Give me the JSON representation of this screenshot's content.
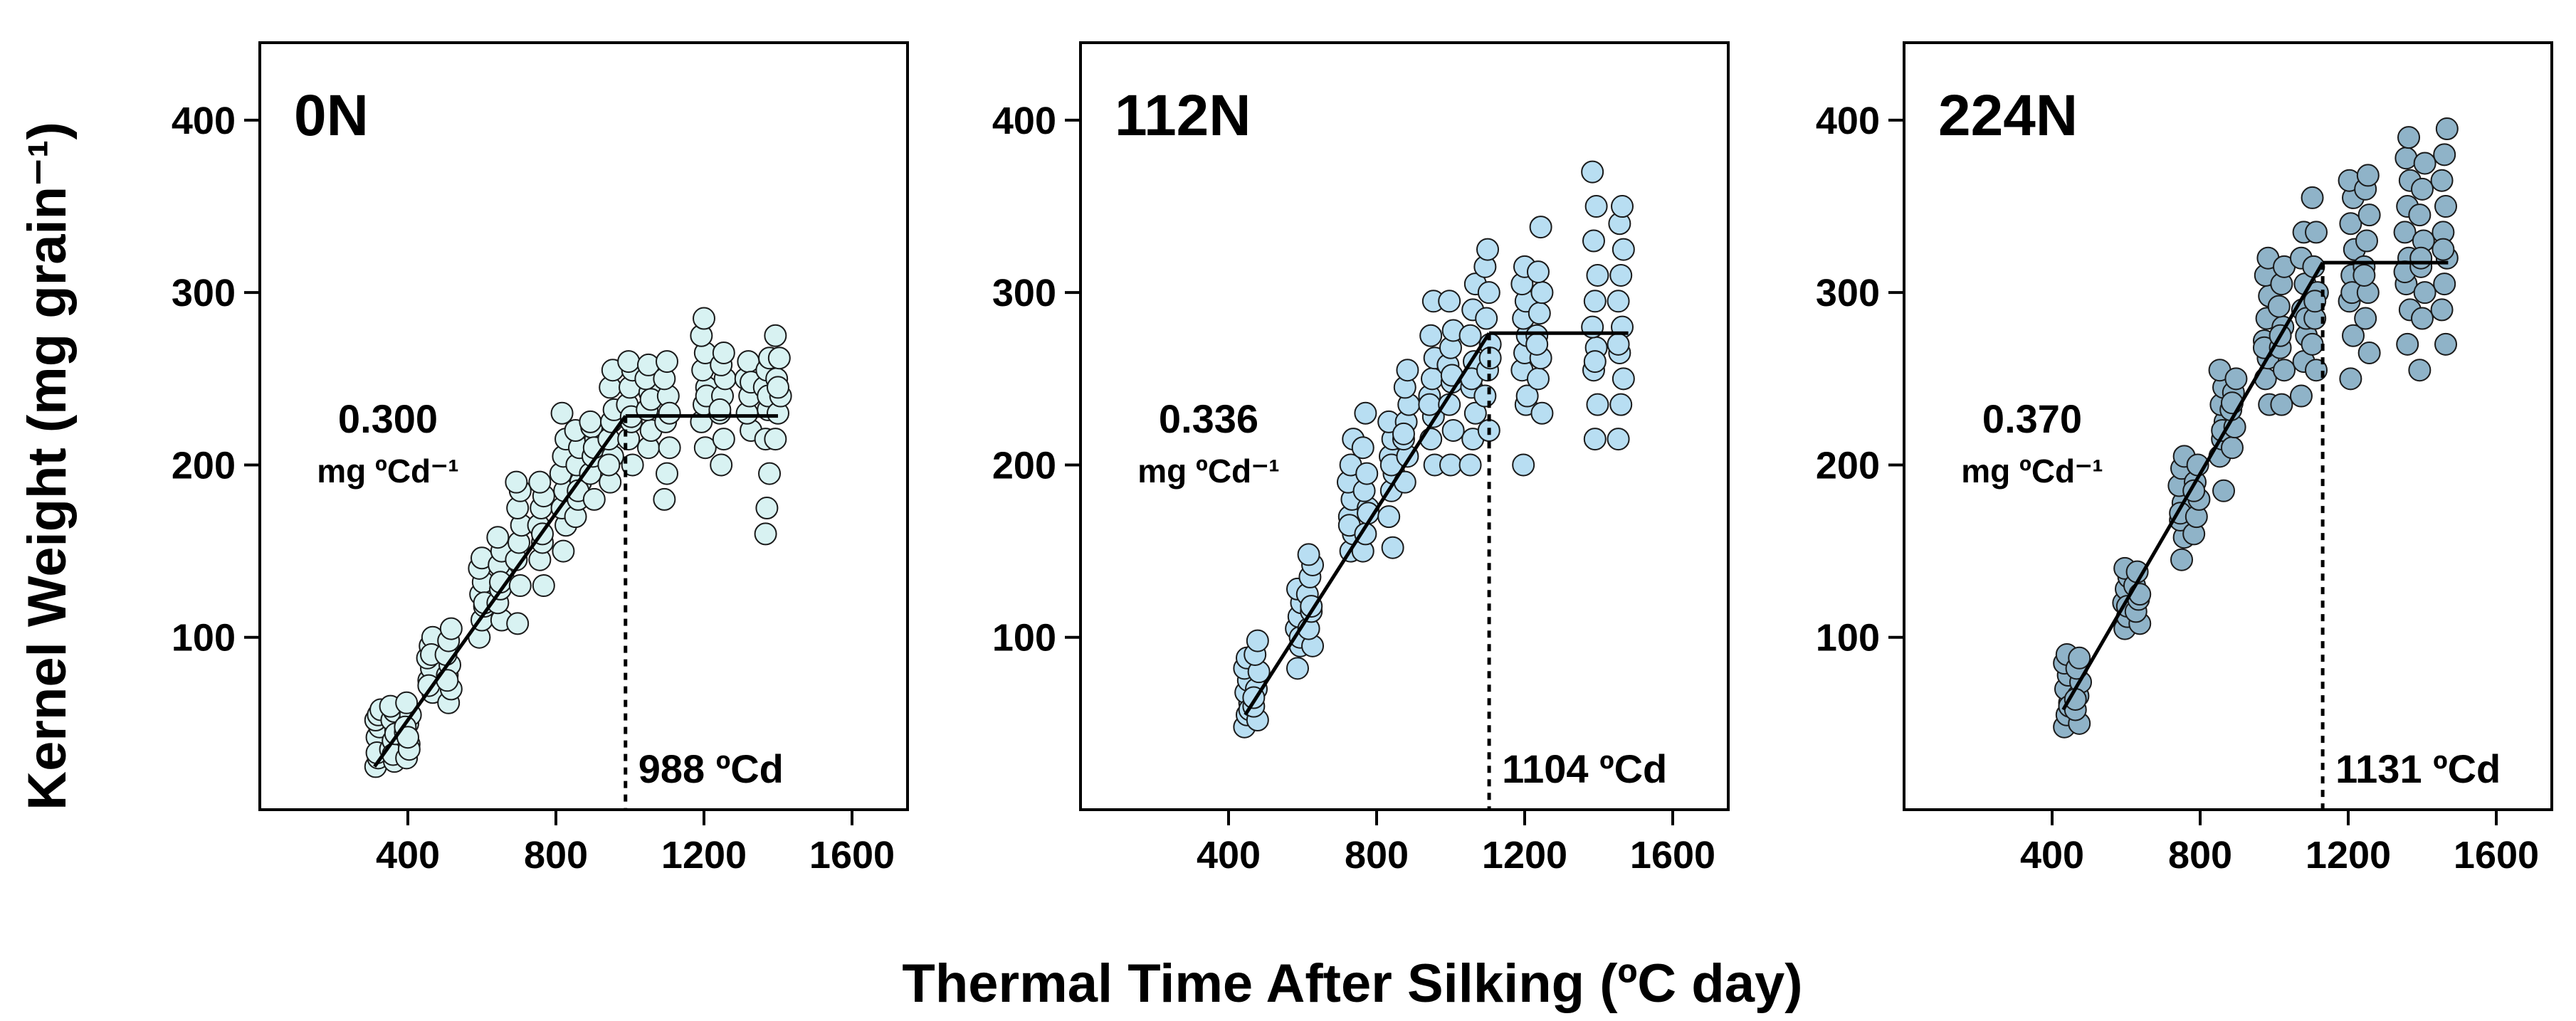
{
  "figure": {
    "ylabel": "Kernel Weight (mg grain⁻¹)",
    "xlabel": "Thermal Time After Silking (ºC day)"
  },
  "chart_data": [
    {
      "type": "scatter",
      "title": "0N",
      "slope_value": "0.300",
      "slope_unit": "mg ºCd⁻¹",
      "breakpoint_label": "988 ºCd",
      "breakpoint_x": 988,
      "slope": 0.3,
      "line_start": [
        310,
        25
      ],
      "plateau_end_x": 1400,
      "xticks": [
        400,
        800,
        1200,
        1600
      ],
      "xtick_labels": [
        "400",
        "800",
        "1200",
        "1600"
      ],
      "yticks": [
        100,
        200,
        300,
        400
      ],
      "ytick_labels": [
        "100",
        "200",
        "300",
        "400"
      ],
      "xlim": [
        0,
        1750
      ],
      "ylim": [
        0,
        440
      ],
      "point_color": "#d8f2f2",
      "groups": [
        {
          "x": 320,
          "y": [
            25,
            30,
            38,
            42,
            48,
            52,
            55,
            58,
            33
          ]
        },
        {
          "x": 360,
          "y": [
            28,
            35,
            40,
            46,
            52,
            57,
            60,
            32,
            44
          ]
        },
        {
          "x": 400,
          "y": [
            30,
            38,
            45,
            50,
            55,
            62,
            35,
            48,
            42
          ]
        },
        {
          "x": 460,
          "y": [
            68,
            75,
            82,
            88,
            95,
            100,
            72,
            90
          ]
        },
        {
          "x": 510,
          "y": [
            62,
            70,
            78,
            84,
            90,
            98,
            105,
            75
          ]
        },
        {
          "x": 600,
          "y": [
            100,
            110,
            118,
            125,
            132,
            140,
            146,
            120
          ]
        },
        {
          "x": 650,
          "y": [
            110,
            120,
            128,
            135,
            142,
            150,
            158,
            132
          ]
        },
        {
          "x": 700,
          "y": [
            108,
            130,
            145,
            155,
            165,
            175,
            185,
            190
          ]
        },
        {
          "x": 760,
          "y": [
            130,
            145,
            155,
            165,
            175,
            182,
            190,
            160
          ]
        },
        {
          "x": 820,
          "y": [
            150,
            165,
            175,
            185,
            195,
            205,
            215,
            230
          ]
        },
        {
          "x": 860,
          "y": [
            170,
            180,
            190,
            200,
            210,
            220,
            185
          ]
        },
        {
          "x": 900,
          "y": [
            180,
            195,
            205,
            215,
            222,
            210,
            225
          ]
        },
        {
          "x": 950,
          "y": [
            190,
            205,
            215,
            225,
            232,
            245,
            255,
            200
          ]
        },
        {
          "x": 1000,
          "y": [
            200,
            215,
            225,
            235,
            245,
            255,
            260,
            228
          ]
        },
        {
          "x": 1050,
          "y": [
            210,
            220,
            232,
            242,
            250,
            258,
            238
          ]
        },
        {
          "x": 1100,
          "y": [
            180,
            195,
            210,
            225,
            240,
            250,
            260,
            230
          ]
        },
        {
          "x": 1200,
          "y": [
            210,
            225,
            235,
            245,
            255,
            265,
            275,
            285,
            240
          ]
        },
        {
          "x": 1250,
          "y": [
            200,
            215,
            230,
            240,
            250,
            258,
            265,
            232
          ]
        },
        {
          "x": 1320,
          "y": [
            220,
            230,
            240,
            250,
            260,
            248
          ]
        },
        {
          "x": 1370,
          "y": [
            175,
            195,
            215,
            232,
            245,
            255,
            262,
            160,
            240
          ]
        },
        {
          "x": 1400,
          "y": [
            215,
            230,
            240,
            250,
            262,
            275,
            245
          ]
        }
      ]
    },
    {
      "type": "scatter",
      "title": "112N",
      "slope_value": "0.336",
      "slope_unit": "mg ºCd⁻¹",
      "breakpoint_label": "1104 ºCd",
      "breakpoint_x": 1104,
      "slope": 0.336,
      "line_start": [
        445,
        55
      ],
      "plateau_end_x": 1480,
      "xticks": [
        400,
        800,
        1200,
        1600
      ],
      "xtick_labels": [
        "400",
        "800",
        "1200",
        "1600"
      ],
      "yticks": [
        100,
        200,
        300,
        400
      ],
      "ytick_labels": [
        "100",
        "200",
        "300",
        "400"
      ],
      "xlim": [
        0,
        1750
      ],
      "ylim": [
        0,
        440
      ],
      "point_color": "#b8def2",
      "groups": [
        {
          "x": 450,
          "y": [
            48,
            55,
            62,
            68,
            75,
            82,
            88,
            58
          ]
        },
        {
          "x": 475,
          "y": [
            52,
            60,
            70,
            80,
            90,
            98,
            65
          ]
        },
        {
          "x": 590,
          "y": [
            82,
            95,
            105,
            112,
            120,
            128,
            100
          ]
        },
        {
          "x": 620,
          "y": [
            95,
            105,
            115,
            125,
            135,
            142,
            148,
            118
          ]
        },
        {
          "x": 730,
          "y": [
            150,
            160,
            170,
            180,
            190,
            200,
            215,
            165
          ]
        },
        {
          "x": 770,
          "y": [
            150,
            160,
            175,
            185,
            195,
            210,
            230,
            172
          ]
        },
        {
          "x": 840,
          "y": [
            152,
            170,
            185,
            195,
            205,
            215,
            225,
            200
          ]
        },
        {
          "x": 880,
          "y": [
            190,
            205,
            215,
            225,
            235,
            245,
            255,
            218
          ]
        },
        {
          "x": 950,
          "y": [
            200,
            215,
            228,
            240,
            250,
            262,
            275,
            295,
            235
          ]
        },
        {
          "x": 1000,
          "y": [
            200,
            220,
            235,
            248,
            258,
            268,
            278,
            295,
            252
          ]
        },
        {
          "x": 1060,
          "y": [
            200,
            215,
            230,
            245,
            260,
            275,
            290,
            305,
            250
          ]
        },
        {
          "x": 1100,
          "y": [
            220,
            240,
            255,
            270,
            285,
            300,
            315,
            325,
            262
          ]
        },
        {
          "x": 1200,
          "y": [
            200,
            235,
            255,
            265,
            275,
            285,
            295,
            305,
            315,
            240
          ]
        },
        {
          "x": 1240,
          "y": [
            230,
            250,
            262,
            275,
            288,
            300,
            312,
            338,
            270
          ]
        },
        {
          "x": 1390,
          "y": [
            215,
            235,
            255,
            268,
            280,
            295,
            310,
            330,
            350,
            370,
            260
          ]
        },
        {
          "x": 1460,
          "y": [
            215,
            235,
            250,
            265,
            280,
            295,
            310,
            325,
            340,
            350,
            270
          ]
        }
      ]
    },
    {
      "type": "scatter",
      "title": "224N",
      "slope_value": "0.370",
      "slope_unit": "mg ºCd⁻¹",
      "breakpoint_label": "1131 ºCd",
      "breakpoint_x": 1131,
      "slope": 0.37,
      "line_start": [
        430,
        58
      ],
      "plateau_end_x": 1470,
      "xticks": [
        400,
        800,
        1200,
        1600
      ],
      "xtick_labels": [
        "400",
        "800",
        "1200",
        "1600"
      ],
      "yticks": [
        100,
        200,
        300,
        400
      ],
      "ytick_labels": [
        "100",
        "200",
        "300",
        "400"
      ],
      "xlim": [
        0,
        1750
      ],
      "ylim": [
        0,
        440
      ],
      "point_color": "#8fb3c8",
      "groups": [
        {
          "x": 440,
          "y": [
            48,
            55,
            62,
            70,
            78,
            85,
            90,
            60
          ]
        },
        {
          "x": 470,
          "y": [
            50,
            58,
            66,
            74,
            82,
            88,
            64
          ]
        },
        {
          "x": 600,
          "y": [
            105,
            112,
            120,
            128,
            135,
            140,
            118
          ]
        },
        {
          "x": 630,
          "y": [
            108,
            115,
            122,
            130,
            138,
            125
          ]
        },
        {
          "x": 750,
          "y": [
            145,
            158,
            168,
            178,
            188,
            198,
            205,
            172
          ]
        },
        {
          "x": 790,
          "y": [
            160,
            170,
            180,
            190,
            200,
            185
          ]
        },
        {
          "x": 860,
          "y": [
            185,
            205,
            215,
            225,
            235,
            245,
            255,
            220
          ]
        },
        {
          "x": 890,
          "y": [
            210,
            222,
            232,
            242,
            250,
            236
          ]
        },
        {
          "x": 980,
          "y": [
            235,
            250,
            262,
            272,
            285,
            298,
            310,
            320,
            268
          ]
        },
        {
          "x": 1020,
          "y": [
            235,
            255,
            268,
            280,
            292,
            305,
            315,
            275
          ]
        },
        {
          "x": 1080,
          "y": [
            240,
            260,
            275,
            290,
            305,
            320,
            335,
            285
          ]
        },
        {
          "x": 1110,
          "y": [
            255,
            270,
            285,
            300,
            315,
            335,
            355,
            295
          ]
        },
        {
          "x": 1210,
          "y": [
            250,
            275,
            295,
            310,
            325,
            340,
            355,
            365,
            300
          ]
        },
        {
          "x": 1250,
          "y": [
            265,
            285,
            300,
            315,
            330,
            345,
            360,
            368,
            310
          ]
        },
        {
          "x": 1360,
          "y": [
            270,
            290,
            305,
            320,
            335,
            350,
            365,
            378,
            390,
            312
          ]
        },
        {
          "x": 1400,
          "y": [
            255,
            285,
            300,
            315,
            330,
            345,
            360,
            375,
            320
          ]
        },
        {
          "x": 1460,
          "y": [
            270,
            290,
            305,
            320,
            335,
            350,
            365,
            380,
            395,
            325
          ]
        }
      ]
    }
  ]
}
